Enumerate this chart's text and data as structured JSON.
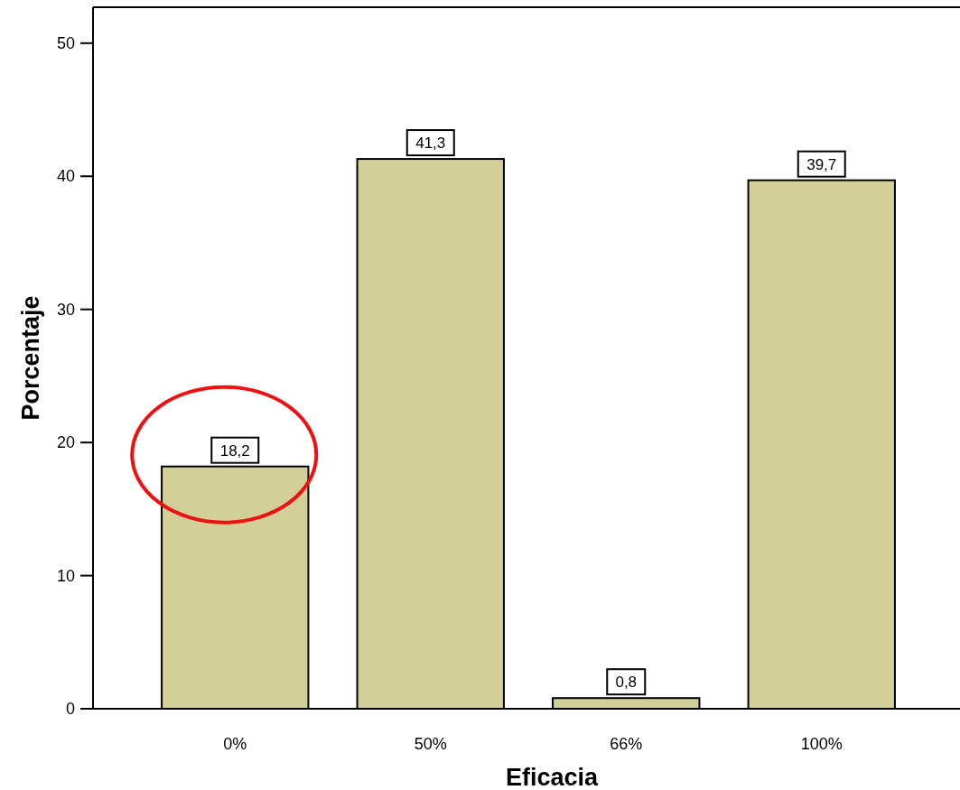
{
  "chart_data": {
    "type": "bar",
    "xlabel": "Eficacia",
    "ylabel": "Porcentaje",
    "categories": [
      "0%",
      "50%",
      "66%",
      "100%"
    ],
    "values": [
      18.2,
      41.3,
      0.8,
      39.7
    ],
    "value_labels": [
      "18,2",
      "41,3",
      "0,8",
      "39,7"
    ],
    "color": "#d3cf99",
    "ylim": [
      0,
      52.7
    ],
    "yticks": [
      0,
      10,
      20,
      30,
      40,
      50
    ],
    "grid": false
  }
}
